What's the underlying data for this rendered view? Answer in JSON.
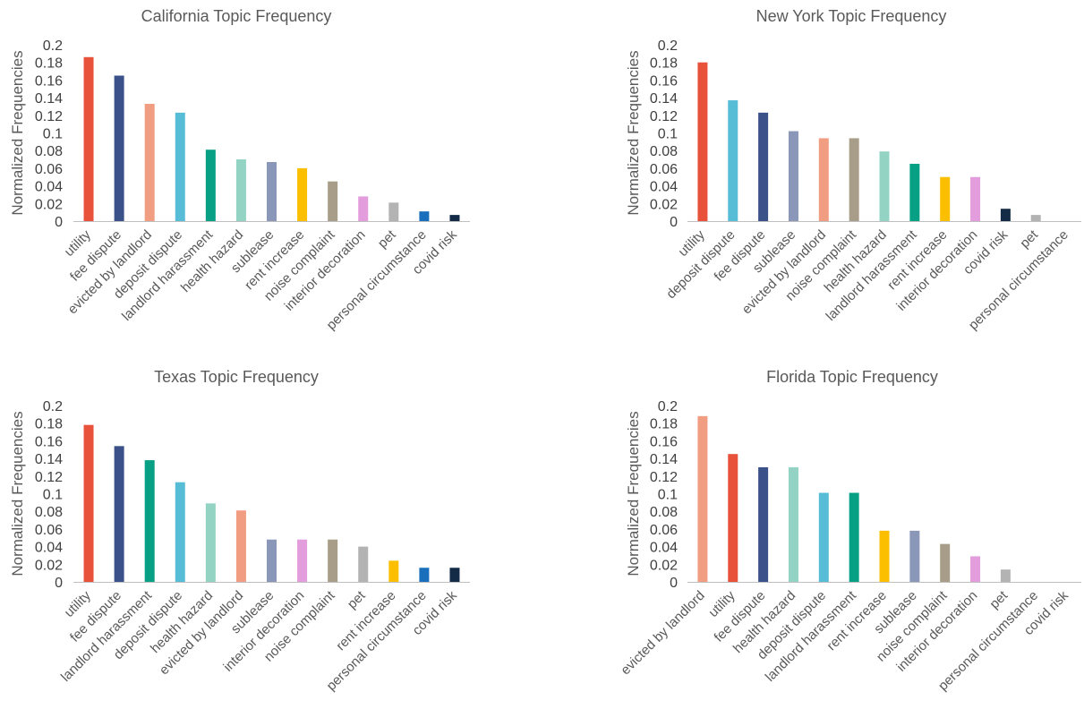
{
  "chart_data": [
    {
      "type": "bar",
      "title": "California Topic Frequency",
      "xlabel": "",
      "ylabel": "Normalized Frequencies",
      "ylim": [
        0,
        0.2
      ],
      "yticks": [
        "0",
        "0.02",
        "0.04",
        "0.06",
        "0.08",
        "0.1",
        "0.12",
        "0.14",
        "0.16",
        "0.18",
        "0.2"
      ],
      "categories": [
        "utility",
        "fee dispute",
        "evicted by landlord",
        "deposit dispute",
        "landlord harassment",
        "health hazard",
        "sublease",
        "rent increase",
        "noise complaint",
        "interior decoration",
        "pet",
        "personal circumstance",
        "covid risk"
      ],
      "values": [
        0.186,
        0.165,
        0.133,
        0.123,
        0.081,
        0.07,
        0.067,
        0.06,
        0.045,
        0.028,
        0.021,
        0.011,
        0.007
      ],
      "colors": [
        "#e8523a",
        "#3a5289",
        "#f19d82",
        "#57bdd6",
        "#07a085",
        "#93d3c3",
        "#8a97b8",
        "#fbbf00",
        "#a89d88",
        "#e39cdc",
        "#b3b3b3",
        "#1a6fbd",
        "#142b47"
      ],
      "grid": false,
      "legend": "none"
    },
    {
      "type": "bar",
      "title": "New York Topic Frequency",
      "xlabel": "",
      "ylabel": "Normalized Frequencies",
      "ylim": [
        0,
        0.2
      ],
      "yticks": [
        "0",
        "0.02",
        "0.04",
        "0.06",
        "0.08",
        "0.1",
        "0.12",
        "0.14",
        "0.16",
        "0.18",
        "0.2"
      ],
      "categories": [
        "utility",
        "deposit dispute",
        "fee dispute",
        "sublease",
        "evicted by landlord",
        "noise complaint",
        "health hazard",
        "landlord harassment",
        "rent increase",
        "interior decoration",
        "covid risk",
        "pet",
        "personal circumstance"
      ],
      "values": [
        0.18,
        0.137,
        0.123,
        0.102,
        0.094,
        0.094,
        0.079,
        0.065,
        0.05,
        0.05,
        0.014,
        0.007,
        0
      ],
      "colors": [
        "#e8523a",
        "#57bdd6",
        "#3a5289",
        "#8a97b8",
        "#f19d82",
        "#a89d88",
        "#93d3c3",
        "#07a085",
        "#fbbf00",
        "#e39cdc",
        "#142b47",
        "#b3b3b3",
        "#1a6fbd"
      ],
      "grid": false,
      "legend": "none"
    },
    {
      "type": "bar",
      "title": "Texas Topic Frequency",
      "xlabel": "",
      "ylabel": "Normalized Frequencies",
      "ylim": [
        0,
        0.2
      ],
      "yticks": [
        "0",
        "0.02",
        "0.04",
        "0.06",
        "0.08",
        "0.1",
        "0.12",
        "0.14",
        "0.16",
        "0.18",
        "0.2"
      ],
      "categories": [
        "utility",
        "fee dispute",
        "landlord harassment",
        "deposit dispute",
        "health hazard",
        "evicted by landlord",
        "sublease",
        "interior decoration",
        "noise complaint",
        "pet",
        "rent increase",
        "personal circumstance",
        "covid risk"
      ],
      "values": [
        0.178,
        0.154,
        0.138,
        0.113,
        0.089,
        0.081,
        0.048,
        0.048,
        0.048,
        0.04,
        0.024,
        0.016,
        0.016
      ],
      "colors": [
        "#e8523a",
        "#3a5289",
        "#07a085",
        "#57bdd6",
        "#93d3c3",
        "#f19d82",
        "#8a97b8",
        "#e39cdc",
        "#a89d88",
        "#b3b3b3",
        "#fbbf00",
        "#1a6fbd",
        "#142b47"
      ],
      "grid": false,
      "legend": "none"
    },
    {
      "type": "bar",
      "title": "Florida Topic Frequency",
      "xlabel": "",
      "ylabel": "Normalized Frequencies",
      "ylim": [
        0,
        0.2
      ],
      "yticks": [
        "0",
        "0.02",
        "0.04",
        "0.06",
        "0.08",
        "0.1",
        "0.12",
        "0.14",
        "0.16",
        "0.18",
        "0.2"
      ],
      "categories": [
        "evicted by landlord",
        "utility",
        "fee dispute",
        "health hazard",
        "deposit dispute",
        "landlord harassment",
        "rent increase",
        "sublease",
        "noise complaint",
        "interior decoration",
        "pet",
        "personal circumstance",
        "covid risk"
      ],
      "values": [
        0.188,
        0.145,
        0.13,
        0.13,
        0.101,
        0.101,
        0.058,
        0.058,
        0.043,
        0.029,
        0.014,
        0,
        0
      ],
      "colors": [
        "#f19d82",
        "#e8523a",
        "#3a5289",
        "#93d3c3",
        "#57bdd6",
        "#07a085",
        "#fbbf00",
        "#8a97b8",
        "#a89d88",
        "#e39cdc",
        "#b3b3b3",
        "#1a6fbd",
        "#142b47"
      ],
      "grid": false,
      "legend": "none"
    }
  ]
}
